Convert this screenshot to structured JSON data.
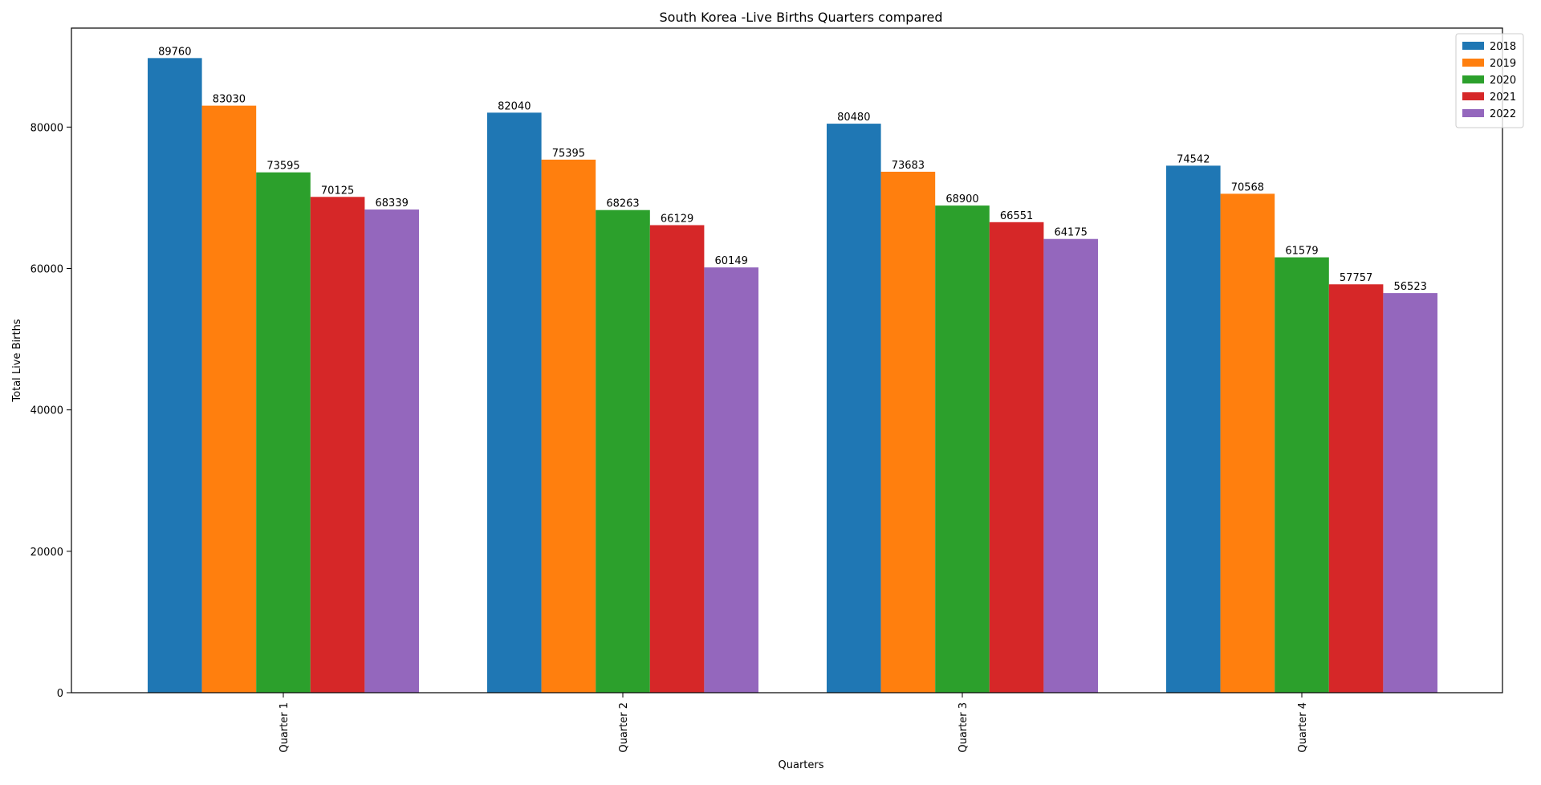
{
  "chart_data": {
    "type": "bar",
    "title": "South Korea -Live Births Quarters compared",
    "xlabel": "Quarters",
    "ylabel": "Total Live Births",
    "categories": [
      "Quarter 1",
      "Quarter 2",
      "Quarter 3",
      "Quarter 4"
    ],
    "series": [
      {
        "name": "2018",
        "color": "#1f77b4",
        "values": [
          89760,
          82040,
          80480,
          74542
        ]
      },
      {
        "name": "2019",
        "color": "#ff7f0e",
        "values": [
          83030,
          75395,
          73683,
          70568
        ]
      },
      {
        "name": "2020",
        "color": "#2ca02c",
        "values": [
          73595,
          68263,
          68900,
          61579
        ]
      },
      {
        "name": "2021",
        "color": "#d62728",
        "values": [
          70125,
          66129,
          66551,
          57757
        ]
      },
      {
        "name": "2022",
        "color": "#9467bd",
        "values": [
          68339,
          60149,
          64175,
          56523
        ]
      }
    ],
    "ylim": [
      0,
      94000
    ],
    "yticks": [
      0,
      20000,
      40000,
      60000,
      80000
    ],
    "grid": false,
    "legend_position": "top-right",
    "x_tick_rotation": "vertical",
    "bar_labels": true
  }
}
